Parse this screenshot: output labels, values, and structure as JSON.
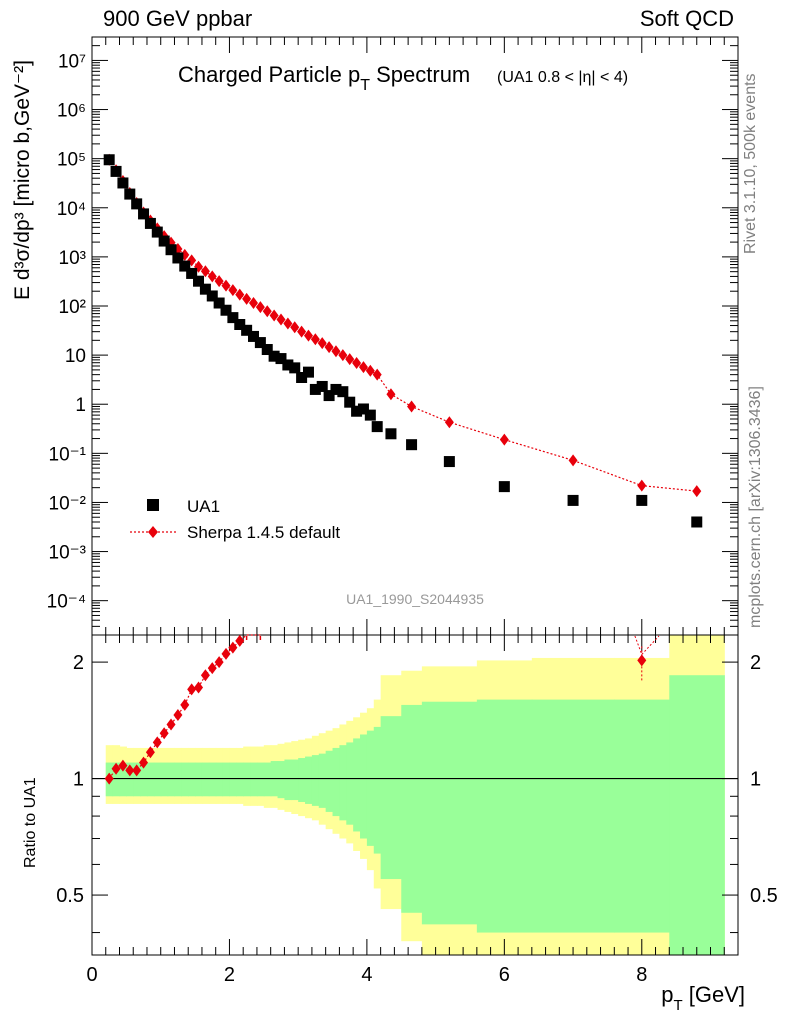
{
  "header": {
    "energy": "900 GeV ppbar",
    "category": "Soft QCD"
  },
  "side": {
    "rivet": "Rivet 3.1.10,  500k events",
    "source": "mcplots.cern.ch [arXiv:1306.3436]"
  },
  "colors": {
    "data": "#000000",
    "mc": "#e8000b",
    "band_inner": "#99ff99",
    "band_outer": "#ffff99"
  },
  "chart_data": [
    {
      "type": "scatter",
      "title_main": "Charged Particle p",
      "title_sub": "T",
      "title_main2": " Spectrum",
      "title_note": "(UA1 0.8 < |η| < 4)",
      "ylabel": "E d³σ/dp³ [micro b,GeV⁻²]",
      "yscale": "log",
      "ylim": [
        2e-05,
        30000000
      ],
      "xlim": [
        0,
        9.4
      ],
      "ytick_labels": [
        "10⁻⁴",
        "10⁻³",
        "10⁻²",
        "10⁻¹",
        "1",
        "10",
        "10²",
        "10³",
        "10⁴",
        "10⁵",
        "10⁶",
        "10⁷"
      ],
      "ytick_values": [
        0.0001,
        0.001,
        0.01,
        0.1,
        1,
        10,
        100,
        1000,
        10000,
        100000,
        1000000,
        10000000
      ],
      "legend": {
        "data": "UA1",
        "mc": "Sherpa 1.4.5 default",
        "placement": "bottom-left"
      },
      "analysis_id": "UA1_1990_S2044935",
      "x": [
        0.25,
        0.35,
        0.45,
        0.55,
        0.65,
        0.75,
        0.85,
        0.95,
        1.05,
        1.15,
        1.25,
        1.35,
        1.45,
        1.55,
        1.65,
        1.75,
        1.85,
        1.95,
        2.05,
        2.15,
        2.25,
        2.35,
        2.45,
        2.55,
        2.65,
        2.75,
        2.85,
        2.95,
        3.05,
        3.15,
        3.25,
        3.35,
        3.45,
        3.55,
        3.65,
        3.75,
        3.85,
        3.95,
        4.05,
        4.15,
        4.35,
        4.65,
        5.2,
        6.0,
        7.0,
        8.0,
        8.8
      ],
      "series": [
        {
          "name": "UA1",
          "values": [
            95000,
            55000,
            32000,
            19000,
            12000,
            7500,
            4800,
            3200,
            2100,
            1400,
            950,
            650,
            460,
            320,
            220,
            160,
            115,
            82,
            58,
            42,
            32,
            24,
            18,
            13,
            9.5,
            8.5,
            6.3,
            5.5,
            3.5,
            4.5,
            2,
            2.3,
            1.5,
            2,
            1.8,
            1.1,
            0.72,
            0.8,
            0.6,
            0.35,
            0.25,
            0.15,
            0.068,
            0.021,
            0.011,
            0.011,
            0.004
          ]
        },
        {
          "name": "Sherpa 1.4.5 default",
          "values": [
            95000,
            58000,
            35000,
            20000,
            12500,
            8000,
            5500,
            3800,
            2650,
            1950,
            1450,
            1100,
            850,
            630,
            510,
            400,
            320,
            260,
            210,
            170,
            140,
            115,
            95,
            78,
            64,
            53,
            44,
            37,
            30,
            25,
            21,
            17.5,
            14.5,
            12,
            10,
            8.3,
            6.9,
            5.7,
            4.8,
            4,
            1.6,
            0.9,
            0.43,
            0.19,
            0.072,
            0.022,
            0.017
          ]
        }
      ]
    },
    {
      "type": "ratio",
      "ylabel": "Ratio to UA1",
      "ytick_labels": [
        "0.5",
        "1",
        "2"
      ],
      "ytick_values": [
        0.5,
        1,
        2
      ],
      "ylim": [
        0.35,
        2.35
      ],
      "xlabel": "p",
      "xlabel_sub": "T",
      "xlabel_unit": " [GeV]",
      "xtick_labels": [
        "0",
        "2",
        "4",
        "6",
        "8"
      ],
      "xtick_values": [
        0,
        2,
        4,
        6,
        8
      ],
      "ratio_x": [
        0.25,
        0.35,
        0.45,
        0.55,
        0.65,
        0.75,
        0.85,
        0.95,
        1.05,
        1.15,
        1.25,
        1.35,
        1.45,
        1.55,
        1.65,
        1.75,
        1.85,
        1.95,
        2.05,
        2.15,
        2.25,
        2.45,
        8.0
      ],
      "ratio_values": [
        1.0,
        1.06,
        1.08,
        1.05,
        1.05,
        1.1,
        1.17,
        1.24,
        1.31,
        1.38,
        1.46,
        1.55,
        1.7,
        1.72,
        1.85,
        1.93,
        2.0,
        2.1,
        2.18,
        2.27,
        2.35,
        2.35,
        2.02
      ],
      "band_edges": [
        0.2,
        0.3,
        0.4,
        0.5,
        0.6,
        0.7,
        0.8,
        0.9,
        1.0,
        1.1,
        1.2,
        1.3,
        1.4,
        1.5,
        1.6,
        1.7,
        1.8,
        1.9,
        2.0,
        2.1,
        2.2,
        2.3,
        2.4,
        2.5,
        2.6,
        2.7,
        2.8,
        2.9,
        3.0,
        3.1,
        3.2,
        3.3,
        3.4,
        3.5,
        3.6,
        3.7,
        3.8,
        3.9,
        4.0,
        4.1,
        4.2,
        4.5,
        4.8,
        5.6,
        6.4,
        7.6,
        8.4,
        9.2
      ],
      "band_inner_hi": [
        1.1,
        1.1,
        1.1,
        1.1,
        1.1,
        1.1,
        1.1,
        1.1,
        1.1,
        1.1,
        1.1,
        1.1,
        1.1,
        1.1,
        1.1,
        1.1,
        1.1,
        1.1,
        1.1,
        1.1,
        1.1,
        1.1,
        1.1,
        1.1,
        1.11,
        1.11,
        1.12,
        1.12,
        1.13,
        1.14,
        1.15,
        1.16,
        1.18,
        1.2,
        1.22,
        1.24,
        1.27,
        1.3,
        1.33,
        1.36,
        1.45,
        1.55,
        1.58,
        1.6,
        1.6,
        1.6,
        1.85
      ],
      "band_inner_lo": [
        0.9,
        0.9,
        0.9,
        0.9,
        0.9,
        0.9,
        0.9,
        0.9,
        0.9,
        0.9,
        0.9,
        0.9,
        0.9,
        0.9,
        0.9,
        0.9,
        0.9,
        0.9,
        0.9,
        0.9,
        0.9,
        0.9,
        0.9,
        0.9,
        0.9,
        0.89,
        0.88,
        0.88,
        0.87,
        0.86,
        0.85,
        0.84,
        0.82,
        0.8,
        0.78,
        0.76,
        0.73,
        0.7,
        0.67,
        0.64,
        0.55,
        0.45,
        0.42,
        0.4,
        0.4,
        0.4,
        0.35
      ],
      "band_outer_hi": [
        1.22,
        1.22,
        1.21,
        1.2,
        1.2,
        1.2,
        1.2,
        1.2,
        1.2,
        1.2,
        1.2,
        1.2,
        1.2,
        1.2,
        1.2,
        1.2,
        1.2,
        1.2,
        1.2,
        1.2,
        1.21,
        1.21,
        1.21,
        1.22,
        1.22,
        1.23,
        1.24,
        1.25,
        1.26,
        1.27,
        1.29,
        1.31,
        1.33,
        1.35,
        1.38,
        1.41,
        1.44,
        1.48,
        1.52,
        1.6,
        1.85,
        1.9,
        1.95,
        2.02,
        2.05,
        2.05,
        2.35
      ],
      "band_outer_lo": [
        0.86,
        0.86,
        0.86,
        0.86,
        0.86,
        0.86,
        0.86,
        0.86,
        0.86,
        0.86,
        0.86,
        0.86,
        0.86,
        0.86,
        0.86,
        0.86,
        0.86,
        0.86,
        0.86,
        0.86,
        0.85,
        0.85,
        0.85,
        0.84,
        0.84,
        0.83,
        0.82,
        0.81,
        0.8,
        0.79,
        0.78,
        0.76,
        0.74,
        0.72,
        0.7,
        0.68,
        0.65,
        0.62,
        0.58,
        0.52,
        0.46,
        0.38,
        0.35,
        0.35,
        0.35,
        0.35,
        0.35
      ]
    }
  ]
}
